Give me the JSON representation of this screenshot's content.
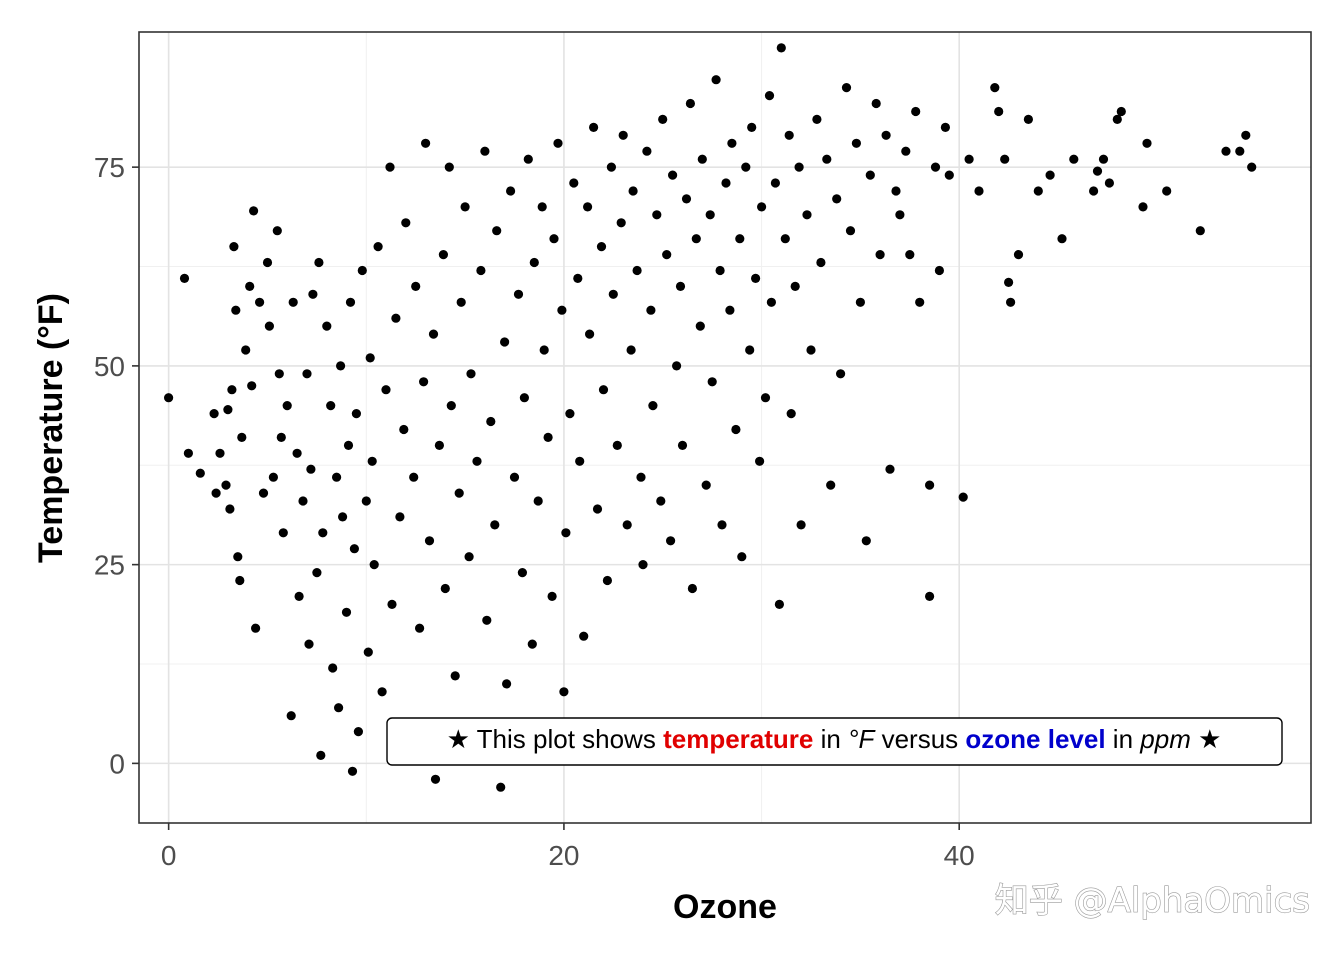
{
  "chart_data": {
    "type": "scatter",
    "xlabel": "Ozone",
    "ylabel": "Temperature (°F)",
    "xlim": [
      -1.5,
      57.8
    ],
    "ylim": [
      -7.5,
      92.0
    ],
    "x_ticks": [
      0,
      20,
      40
    ],
    "y_ticks": [
      0,
      25,
      50,
      75
    ],
    "x_tick_labels": [
      "0",
      "20",
      "40"
    ],
    "y_tick_labels": [
      "0",
      "25",
      "50",
      "75"
    ],
    "grid": true,
    "point_color": "#000000",
    "annotation": {
      "star_left": "★",
      "part1": "This plot shows",
      "highlight1": "temperature",
      "highlight1_color": "#e00000",
      "part2": "in",
      "unit1": "°F",
      "part3": "versus",
      "highlight2": "ozone level",
      "highlight2_color": "#0000cc",
      "part4": "in",
      "unit2": "ppm",
      "star_right": "★"
    },
    "points": [
      [
        0.0,
        46
      ],
      [
        0.8,
        61
      ],
      [
        1.0,
        39
      ],
      [
        1.6,
        36.5
      ],
      [
        2.3,
        44
      ],
      [
        2.4,
        34
      ],
      [
        2.6,
        39
      ],
      [
        2.9,
        35
      ],
      [
        3.0,
        44.5
      ],
      [
        3.1,
        32
      ],
      [
        3.2,
        47
      ],
      [
        3.3,
        65
      ],
      [
        3.4,
        57
      ],
      [
        3.5,
        26
      ],
      [
        3.6,
        23
      ],
      [
        3.7,
        41
      ],
      [
        3.9,
        52
      ],
      [
        4.1,
        60
      ],
      [
        4.2,
        47.5
      ],
      [
        4.3,
        69.5
      ],
      [
        4.4,
        17
      ],
      [
        4.6,
        58
      ],
      [
        4.8,
        34
      ],
      [
        5.0,
        63
      ],
      [
        5.1,
        55
      ],
      [
        5.3,
        36
      ],
      [
        5.5,
        67
      ],
      [
        5.6,
        49
      ],
      [
        5.7,
        41
      ],
      [
        5.8,
        29
      ],
      [
        6.0,
        45
      ],
      [
        6.2,
        6
      ],
      [
        6.3,
        58
      ],
      [
        6.5,
        39
      ],
      [
        6.6,
        21
      ],
      [
        6.8,
        33
      ],
      [
        7.0,
        49
      ],
      [
        7.1,
        15
      ],
      [
        7.2,
        37
      ],
      [
        7.3,
        59
      ],
      [
        7.5,
        24
      ],
      [
        7.6,
        63
      ],
      [
        7.7,
        1
      ],
      [
        7.8,
        29
      ],
      [
        8.0,
        55
      ],
      [
        8.2,
        45
      ],
      [
        8.3,
        12
      ],
      [
        8.5,
        36
      ],
      [
        8.6,
        7
      ],
      [
        8.7,
        50
      ],
      [
        8.8,
        31
      ],
      [
        9.0,
        19
      ],
      [
        9.1,
        40
      ],
      [
        9.2,
        58
      ],
      [
        9.3,
        -1
      ],
      [
        9.4,
        27
      ],
      [
        9.5,
        44
      ],
      [
        9.6,
        4
      ],
      [
        9.8,
        62
      ],
      [
        10.0,
        33
      ],
      [
        10.1,
        14
      ],
      [
        10.2,
        51
      ],
      [
        10.3,
        38
      ],
      [
        10.4,
        25
      ],
      [
        10.6,
        65
      ],
      [
        10.8,
        9
      ],
      [
        11.0,
        47
      ],
      [
        11.2,
        75
      ],
      [
        11.3,
        20
      ],
      [
        11.5,
        56
      ],
      [
        11.7,
        31
      ],
      [
        11.9,
        42
      ],
      [
        12.0,
        68
      ],
      [
        12.2,
        3
      ],
      [
        12.4,
        36
      ],
      [
        12.5,
        60
      ],
      [
        12.7,
        17
      ],
      [
        12.9,
        48
      ],
      [
        13.0,
        78
      ],
      [
        13.2,
        28
      ],
      [
        13.4,
        54
      ],
      [
        13.5,
        -2
      ],
      [
        13.7,
        40
      ],
      [
        13.9,
        64
      ],
      [
        14.0,
        22
      ],
      [
        14.2,
        75
      ],
      [
        14.3,
        45
      ],
      [
        14.5,
        11
      ],
      [
        14.7,
        34
      ],
      [
        14.8,
        58
      ],
      [
        15.0,
        70
      ],
      [
        15.2,
        26
      ],
      [
        15.3,
        49
      ],
      [
        15.5,
        5
      ],
      [
        15.6,
        38
      ],
      [
        15.8,
        62
      ],
      [
        16.0,
        77
      ],
      [
        16.1,
        18
      ],
      [
        16.3,
        43
      ],
      [
        16.5,
        30
      ],
      [
        16.6,
        67
      ],
      [
        16.8,
        -3
      ],
      [
        17.0,
        53
      ],
      [
        17.1,
        10
      ],
      [
        17.3,
        72
      ],
      [
        17.5,
        36
      ],
      [
        17.7,
        59
      ],
      [
        17.9,
        24
      ],
      [
        18.0,
        46
      ],
      [
        18.2,
        76
      ],
      [
        18.4,
        15
      ],
      [
        18.5,
        63
      ],
      [
        18.7,
        33
      ],
      [
        18.9,
        70
      ],
      [
        19.0,
        52
      ],
      [
        19.2,
        41
      ],
      [
        19.4,
        21
      ],
      [
        19.5,
        66
      ],
      [
        19.7,
        78
      ],
      [
        19.9,
        57
      ],
      [
        20.0,
        9
      ],
      [
        20.1,
        29
      ],
      [
        20.3,
        44
      ],
      [
        20.5,
        73
      ],
      [
        20.7,
        61
      ],
      [
        20.8,
        38
      ],
      [
        21.0,
        16
      ],
      [
        21.2,
        70
      ],
      [
        21.3,
        54
      ],
      [
        21.5,
        80
      ],
      [
        21.7,
        32
      ],
      [
        21.9,
        65
      ],
      [
        22.0,
        47
      ],
      [
        22.2,
        23
      ],
      [
        22.4,
        75
      ],
      [
        22.5,
        59
      ],
      [
        22.7,
        40
      ],
      [
        22.9,
        68
      ],
      [
        23.0,
        79
      ],
      [
        23.2,
        30
      ],
      [
        23.4,
        52
      ],
      [
        23.5,
        72
      ],
      [
        23.7,
        62
      ],
      [
        23.9,
        36
      ],
      [
        24.0,
        25
      ],
      [
        24.2,
        77
      ],
      [
        24.4,
        57
      ],
      [
        24.5,
        45
      ],
      [
        24.7,
        69
      ],
      [
        24.9,
        33
      ],
      [
        25.0,
        81
      ],
      [
        25.2,
        64
      ],
      [
        25.4,
        28
      ],
      [
        25.5,
        74
      ],
      [
        25.7,
        50
      ],
      [
        25.9,
        60
      ],
      [
        26.0,
        40
      ],
      [
        26.2,
        71
      ],
      [
        26.4,
        83
      ],
      [
        26.5,
        22
      ],
      [
        26.7,
        66
      ],
      [
        26.9,
        55
      ],
      [
        27.0,
        76
      ],
      [
        27.2,
        35
      ],
      [
        27.4,
        69
      ],
      [
        27.5,
        48
      ],
      [
        27.7,
        86
      ],
      [
        27.9,
        62
      ],
      [
        28.0,
        30
      ],
      [
        28.2,
        73
      ],
      [
        28.4,
        57
      ],
      [
        28.5,
        78
      ],
      [
        28.7,
        42
      ],
      [
        28.9,
        66
      ],
      [
        29.0,
        26
      ],
      [
        29.2,
        75
      ],
      [
        29.4,
        52
      ],
      [
        29.5,
        80
      ],
      [
        29.7,
        61
      ],
      [
        29.9,
        38
      ],
      [
        30.0,
        70
      ],
      [
        30.2,
        46
      ],
      [
        30.4,
        84
      ],
      [
        30.5,
        58
      ],
      [
        30.7,
        73
      ],
      [
        30.9,
        20
      ],
      [
        31.0,
        90
      ],
      [
        31.2,
        66
      ],
      [
        31.4,
        79
      ],
      [
        31.5,
        44
      ],
      [
        31.7,
        60
      ],
      [
        31.9,
        75
      ],
      [
        32.0,
        30
      ],
      [
        32.3,
        69
      ],
      [
        32.5,
        52
      ],
      [
        32.8,
        81
      ],
      [
        33.0,
        63
      ],
      [
        33.3,
        76
      ],
      [
        33.5,
        35
      ],
      [
        33.8,
        71
      ],
      [
        34.0,
        49
      ],
      [
        34.3,
        85
      ],
      [
        34.5,
        67
      ],
      [
        34.8,
        78
      ],
      [
        35.0,
        58
      ],
      [
        35.3,
        28
      ],
      [
        35.5,
        74
      ],
      [
        35.8,
        83
      ],
      [
        36.0,
        64
      ],
      [
        36.3,
        79
      ],
      [
        36.5,
        37
      ],
      [
        36.8,
        72
      ],
      [
        37.0,
        69
      ],
      [
        37.3,
        77
      ],
      [
        37.5,
        64
      ],
      [
        37.8,
        82
      ],
      [
        38.0,
        58
      ],
      [
        38.5,
        35
      ],
      [
        38.5,
        21
      ],
      [
        38.8,
        75
      ],
      [
        39.0,
        62
      ],
      [
        39.3,
        80
      ],
      [
        39.5,
        74
      ],
      [
        40.2,
        33.5
      ],
      [
        40.5,
        76
      ],
      [
        41.0,
        72
      ],
      [
        41.8,
        85
      ],
      [
        42.0,
        82
      ],
      [
        42.3,
        76
      ],
      [
        42.5,
        60.5
      ],
      [
        42.6,
        58
      ],
      [
        43.0,
        64
      ],
      [
        43.5,
        81
      ],
      [
        44.0,
        72
      ],
      [
        44.6,
        74
      ],
      [
        45.2,
        66
      ],
      [
        45.8,
        76
      ],
      [
        46.8,
        72
      ],
      [
        47.0,
        74.5
      ],
      [
        47.3,
        76
      ],
      [
        47.6,
        73
      ],
      [
        48.0,
        81
      ],
      [
        48.2,
        82
      ],
      [
        49.3,
        70
      ],
      [
        49.5,
        78
      ],
      [
        50.5,
        72
      ],
      [
        52.2,
        67
      ],
      [
        53.5,
        77
      ],
      [
        54.2,
        77
      ],
      [
        54.5,
        79
      ],
      [
        54.8,
        75
      ]
    ]
  },
  "watermark": "知乎 @AlphaOmics"
}
